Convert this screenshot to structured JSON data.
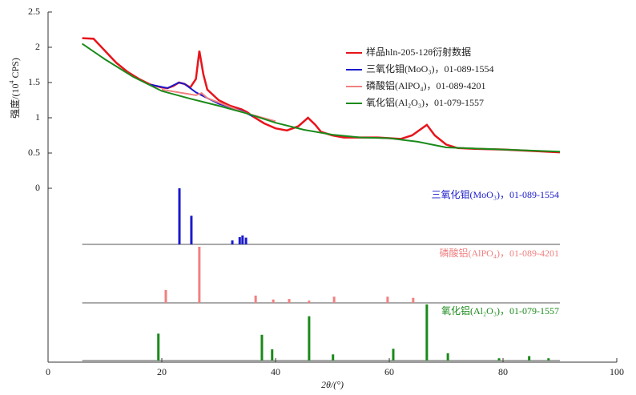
{
  "chart_data": {
    "type": "line",
    "xlabel": "2θ/(°)",
    "ylabel": [
      "强度/(10",
      "4",
      " CPS)"
    ],
    "xlim": [
      0,
      100
    ],
    "xticks": [
      0,
      20,
      40,
      60,
      80,
      100
    ],
    "ylim": [
      0,
      2.5
    ],
    "yticks": [
      0,
      0.5,
      1.0,
      1.5,
      2.0,
      2.5
    ],
    "series": [
      {
        "name": "样品hln-205-12θ衍射数据",
        "color": "#e8141c",
        "x": [
          6,
          8,
          10,
          12,
          14,
          16,
          18,
          20,
          21,
          22,
          23,
          24,
          25,
          26,
          26.6,
          27.3,
          28,
          30,
          32,
          34,
          35,
          36,
          38,
          40,
          42,
          44,
          45.7,
          47,
          48,
          50,
          52,
          55,
          58,
          60,
          62,
          64,
          66.6,
          68,
          70,
          72,
          75,
          80,
          85,
          90
        ],
        "values": [
          2.13,
          2.12,
          1.95,
          1.78,
          1.65,
          1.55,
          1.47,
          1.43,
          1.42,
          1.45,
          1.5,
          1.48,
          1.43,
          1.55,
          1.95,
          1.62,
          1.4,
          1.25,
          1.17,
          1.12,
          1.08,
          1.02,
          0.92,
          0.85,
          0.82,
          0.88,
          1.0,
          0.9,
          0.8,
          0.75,
          0.72,
          0.72,
          0.72,
          0.71,
          0.7,
          0.75,
          0.9,
          0.75,
          0.62,
          0.57,
          0.56,
          0.55,
          0.53,
          0.51
        ]
      },
      {
        "name": "三氧化钼(MoO₃)，01-089-1554",
        "color": "#1a1acc",
        "x": [
          18,
          21,
          23,
          24,
          26,
          30,
          34,
          36
        ],
        "values": [
          1.47,
          1.42,
          1.5,
          1.48,
          1.36,
          1.2,
          1.1,
          1.02
        ]
      },
      {
        "name": "磷酸铝(AlPO₄)，01-089-4201",
        "color": "#f08080",
        "x": [
          20,
          26,
          27,
          28,
          35,
          40
        ],
        "values": [
          1.4,
          1.32,
          1.35,
          1.28,
          1.06,
          0.95
        ]
      },
      {
        "name": "氧化铝(Al₂O₃)，01-079-1557",
        "color": "#1a8a1a",
        "x": [
          6,
          10,
          15,
          20,
          25,
          30,
          35,
          40,
          45,
          50,
          55,
          60,
          65,
          70,
          80,
          90
        ],
        "values": [
          2.05,
          1.83,
          1.58,
          1.38,
          1.27,
          1.17,
          1.06,
          0.93,
          0.83,
          0.76,
          0.72,
          0.71,
          0.66,
          0.58,
          0.55,
          0.52
        ]
      }
    ],
    "references": [
      {
        "name": "三氧化钼(MoO₃)，01-089-1554",
        "color": "#1a1acc",
        "positions": [
          23.1,
          25.2,
          32.4,
          33.7,
          34.2,
          34.8
        ],
        "intensities": [
          100,
          51,
          7,
          13,
          16,
          12
        ]
      },
      {
        "name": "磷酸铝(AlPO₄)，01-089-4201",
        "color": "#f08080",
        "positions": [
          20.7,
          26.6,
          36.5,
          39.6,
          42.4,
          45.9,
          50.3,
          59.7,
          64.2
        ],
        "intensities": [
          23,
          100,
          13,
          6,
          7,
          4,
          11,
          11,
          9
        ]
      },
      {
        "name": "氧化铝(Al₂O₃)，01-079-1557",
        "color": "#1a8a1a",
        "positions": [
          19.4,
          37.6,
          39.4,
          45.9,
          50.1,
          60.7,
          66.6,
          70.3,
          79.3,
          84.6,
          88.0
        ],
        "intensities": [
          48,
          46,
          20,
          79,
          11,
          21,
          100,
          13,
          4,
          8,
          4
        ]
      }
    ]
  }
}
